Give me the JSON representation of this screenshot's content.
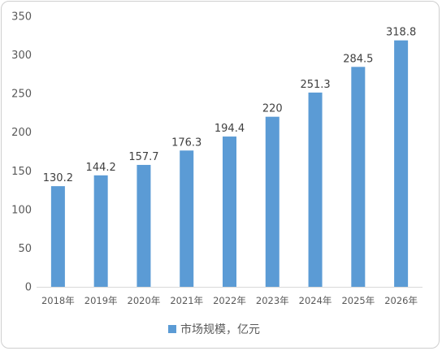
{
  "chart_data": {
    "type": "bar",
    "categories": [
      "2018年",
      "2019年",
      "2020年",
      "2021年",
      "2022年",
      "2023年",
      "2024年",
      "2025年",
      "2026年"
    ],
    "series": [
      {
        "name": "市场规模，亿元",
        "values": [
          130.2,
          144.2,
          157.7,
          176.3,
          194.4,
          220,
          251.3,
          284.5,
          318.8
        ],
        "labels": [
          "130.2",
          "144.2",
          "157.7",
          "176.3",
          "194.4",
          "220",
          "251.3",
          "284.5",
          "318.8"
        ],
        "color": "#5b9bd5"
      }
    ],
    "y_ticks": [
      "0",
      "50",
      "100",
      "150",
      "200",
      "250",
      "300",
      "350"
    ],
    "ylim": [
      0,
      350
    ],
    "grid": false,
    "legend_position": "bottom",
    "title": "",
    "xlabel": "",
    "ylabel": ""
  }
}
